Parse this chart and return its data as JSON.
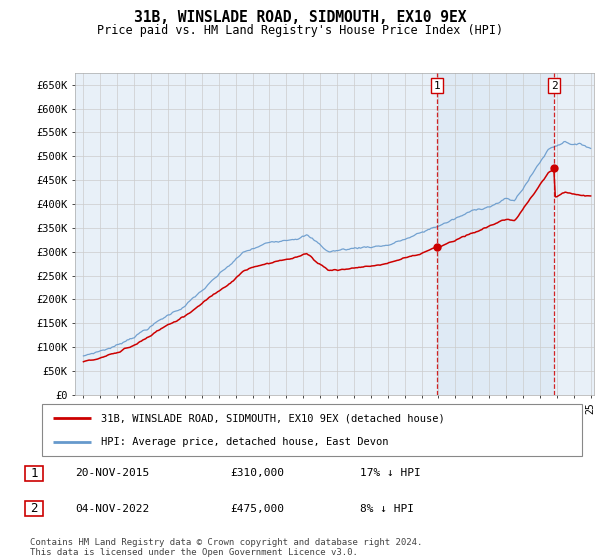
{
  "title": "31B, WINSLADE ROAD, SIDMOUTH, EX10 9EX",
  "subtitle": "Price paid vs. HM Land Registry's House Price Index (HPI)",
  "legend_label_red": "31B, WINSLADE ROAD, SIDMOUTH, EX10 9EX (detached house)",
  "legend_label_blue": "HPI: Average price, detached house, East Devon",
  "transaction1_date": "20-NOV-2015",
  "transaction1_price": "£310,000",
  "transaction1_note": "17% ↓ HPI",
  "transaction2_date": "04-NOV-2022",
  "transaction2_price": "£475,000",
  "transaction2_note": "8% ↓ HPI",
  "footer": "Contains HM Land Registry data © Crown copyright and database right 2024.\nThis data is licensed under the Open Government Licence v3.0.",
  "ylim": [
    0,
    675000
  ],
  "yticks": [
    0,
    50000,
    100000,
    150000,
    200000,
    250000,
    300000,
    350000,
    400000,
    450000,
    500000,
    550000,
    600000,
    650000
  ],
  "ytick_labels": [
    "£0",
    "£50K",
    "£100K",
    "£150K",
    "£200K",
    "£250K",
    "£300K",
    "£350K",
    "£400K",
    "£450K",
    "£500K",
    "£550K",
    "£600K",
    "£650K"
  ],
  "red_color": "#cc0000",
  "blue_color": "#6699cc",
  "shade_color": "#dce8f5",
  "vline_color": "#cc0000",
  "grid_color": "#cccccc",
  "background_color": "#ffffff",
  "plot_background": "#e8f0f8",
  "transaction1_x": 2015.9,
  "transaction2_x": 2022.85,
  "transaction1_y": 310000,
  "transaction2_y": 475000,
  "xlim_left": 1995.0,
  "xlim_right": 2025.2
}
